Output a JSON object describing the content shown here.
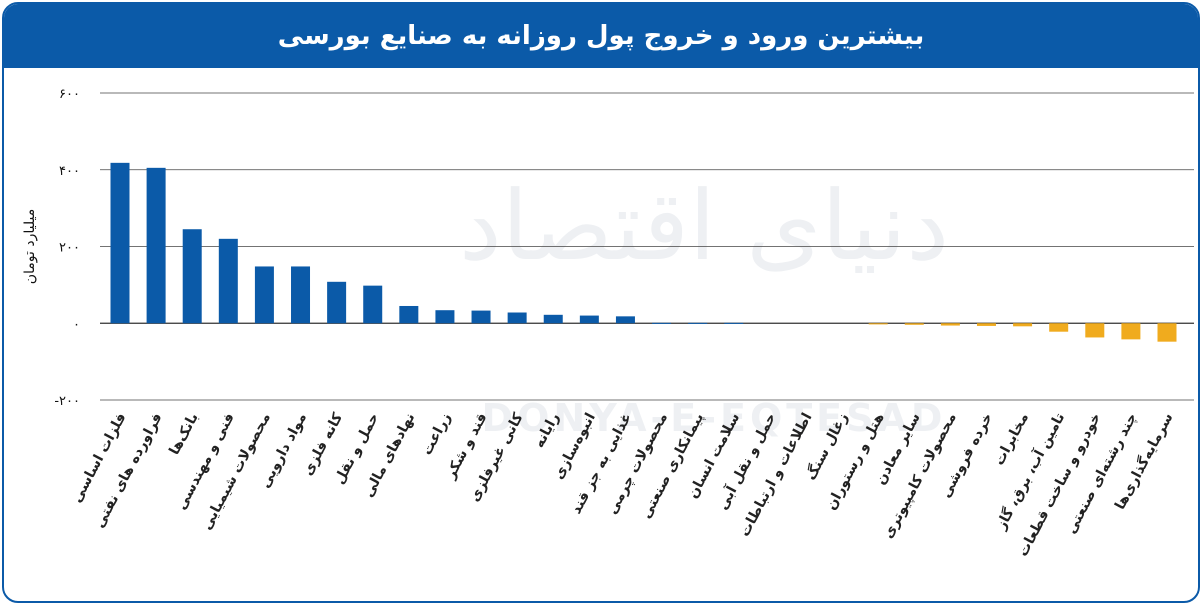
{
  "title": "بیشترین ورود و خروج پول روزانه به صنایع بورسی",
  "watermark": {
    "text": "دنیای اقتصاد",
    "latin": "DONYA-E-EQTESAD"
  },
  "colors": {
    "header": "#0b5aa8",
    "positive": "#0b5aa8",
    "negative": "#f0ab1e"
  },
  "chart_data": {
    "type": "bar",
    "ylabel": "میلیارد تومان",
    "ylim": [
      -200,
      600
    ],
    "yticks": [
      -200,
      0,
      200,
      400,
      600
    ],
    "ytick_labels": [
      "-۲۰۰",
      "۰",
      "۲۰۰",
      "۴۰۰",
      "۶۰۰"
    ],
    "grid": true,
    "categories": [
      "فلزات اساسی",
      "فراورده های نفتی",
      "بانک‌ها",
      "فنی و مهندسی",
      "محصولات شیمیایی",
      "مواد دارویی",
      "کانه فلزی",
      "حمل و نقل",
      "نهادهای مالی",
      "زراعت",
      "قند و شکر",
      "کانی غیرفلزی",
      "رایانه",
      "انبوه‌سازی",
      "غذایی به جز قند",
      "محصولات چرمی",
      "پیمانکاری صنعتی",
      "سلامت انسان",
      "حمل و نقل آبی",
      "اطلاعات و ارتباطات",
      "زغال سنگ",
      "هتل و رستوران",
      "سایر معادن",
      "محصولات کامپیوتری",
      "خرده فروشی",
      "مخابرات",
      "تامین آب، برق، گاز",
      "خودرو و ساخت قطعات",
      "چند رشته‌ای صنعتی",
      "سرمایه‌گذاری‌ها"
    ],
    "values": [
      418,
      405,
      245,
      220,
      148,
      148,
      108,
      98,
      45,
      34,
      33,
      28,
      22,
      20,
      18,
      1,
      1,
      1,
      0,
      0,
      0,
      -3,
      -4,
      -6,
      -7,
      -8,
      -22,
      -37,
      -42,
      -48
    ]
  }
}
